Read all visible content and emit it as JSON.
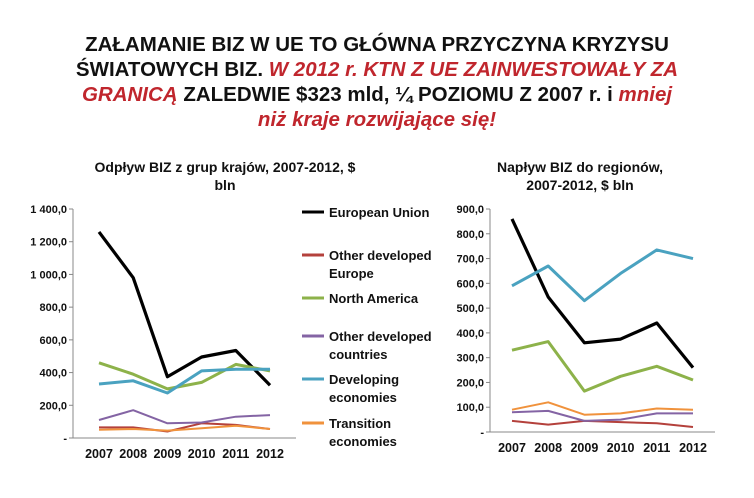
{
  "headline": {
    "line1": "ZAŁAMANIE BIZ W UE TO GŁÓWNA PRZYCZYNA KRYZYSU",
    "line2a": "ŚWIATOWYCH BIZ. ",
    "line2b": "W 2012 r. KTN Z UE ZAINWESTOWAŁY ZA",
    "line3a": "GRANICĄ",
    "line3b": " ZALEDWIE $323 mld, ¼ POZIOMU Z 2007 r. i ",
    "line3c": "mniej",
    "line4": "niż kraje rozwijające się!"
  },
  "colors": {
    "European Union": "#000000",
    "Other developed Europe": "#b4413c",
    "North America": "#8db24a",
    "Other developed countries": "#8464a4",
    "Developing economies": "#4aa2c0",
    "Transition economies": "#f0923c"
  },
  "chart_data": [
    {
      "type": "line",
      "title_line1": "Odpływ  BIZ z grup krajów, 2007-2012, $",
      "title_line2": "bln",
      "categories": [
        "2007",
        "2008",
        "2009",
        "2010",
        "2011",
        "2012"
      ],
      "y_tick_labels": [
        "-",
        "200,0",
        "400,0",
        "600,0",
        "800,0",
        "1 000,0",
        "1 200,0",
        "1 400,0"
      ],
      "ylim": [
        0,
        1400
      ],
      "legend_position": "right",
      "series": [
        {
          "name": "European Union",
          "values": [
            1260,
            980,
            375,
            495,
            535,
            323
          ]
        },
        {
          "name": "Other developed Europe",
          "values": [
            65,
            65,
            40,
            90,
            80,
            55
          ]
        },
        {
          "name": "North America",
          "values": [
            460,
            390,
            300,
            340,
            450,
            410
          ]
        },
        {
          "name": "Other developed countries",
          "values": [
            110,
            170,
            90,
            95,
            130,
            140
          ]
        },
        {
          "name": "Developing economies",
          "values": [
            330,
            350,
            275,
            410,
            420,
            420
          ]
        },
        {
          "name": "Transition economies",
          "values": [
            50,
            55,
            45,
            60,
            75,
            55
          ]
        }
      ],
      "legend_labels": [
        [
          "European Union"
        ],
        [
          "Other developed",
          "Europe"
        ],
        [
          "North America"
        ],
        [
          "Other developed",
          "countries"
        ],
        [
          "Developing",
          "economies"
        ],
        [
          "Transition",
          "economies"
        ]
      ]
    },
    {
      "type": "line",
      "title_line1": "Napływ BIZ do regionów,",
      "title_line2": "2007-2012, $ bln",
      "categories": [
        "2007",
        "2008",
        "2009",
        "2010",
        "2011",
        "2012"
      ],
      "y_tick_labels": [
        "-",
        "100,0",
        "200,0",
        "300,0",
        "400,0",
        "500,0",
        "600,0",
        "700,0",
        "800,0",
        "900,0"
      ],
      "ylim": [
        0,
        900
      ],
      "series": [
        {
          "name": "European Union",
          "values": [
            860,
            545,
            360,
            375,
            440,
            260
          ]
        },
        {
          "name": "Other developed Europe",
          "values": [
            45,
            30,
            45,
            40,
            35,
            20
          ]
        },
        {
          "name": "North America",
          "values": [
            330,
            365,
            165,
            225,
            265,
            210
          ]
        },
        {
          "name": "Other developed countries",
          "values": [
            80,
            85,
            45,
            50,
            75,
            75
          ]
        },
        {
          "name": "Developing economies",
          "values": [
            590,
            670,
            530,
            640,
            735,
            700
          ]
        },
        {
          "name": "Transition economies",
          "values": [
            90,
            120,
            70,
            75,
            95,
            90
          ]
        }
      ]
    }
  ]
}
